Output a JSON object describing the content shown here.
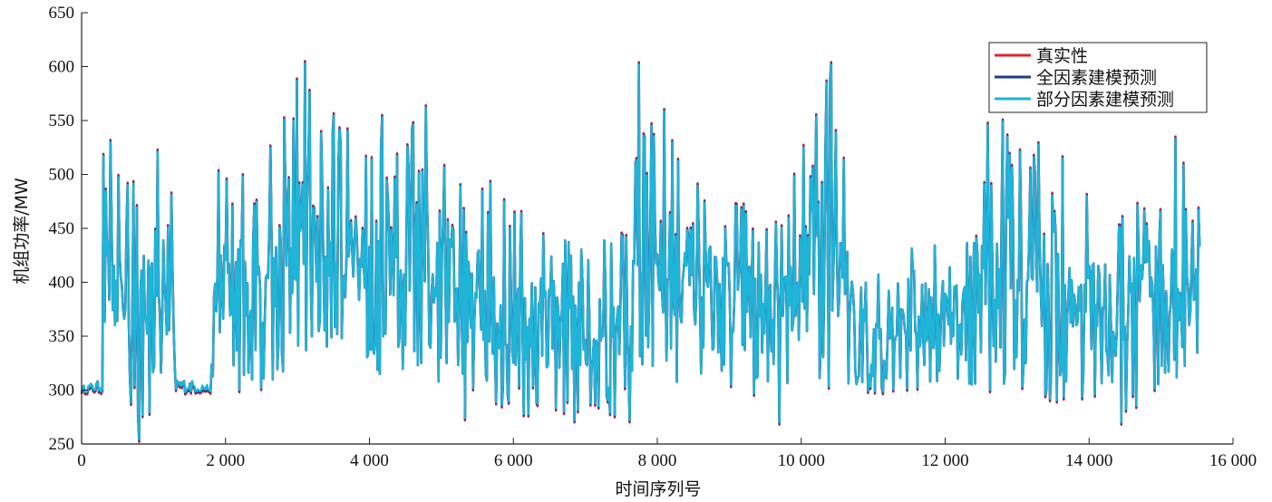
{
  "chart_data": {
    "type": "line",
    "title": "",
    "xlabel": "时间序列号",
    "ylabel": "机组功率/MW",
    "xlim": [
      0,
      16000
    ],
    "ylim": [
      250,
      650
    ],
    "xticks": [
      0,
      2000,
      4000,
      6000,
      8000,
      10000,
      12000,
      14000,
      16000
    ],
    "xtick_labels": [
      "0",
      "2 000",
      "4 000",
      "6 000",
      "8 000",
      "10 000",
      "12 000",
      "14 000",
      "16 000"
    ],
    "yticks": [
      250,
      300,
      350,
      400,
      450,
      500,
      550,
      600,
      650
    ],
    "ytick_labels": [
      "250",
      "300",
      "350",
      "400",
      "450",
      "500",
      "550",
      "600",
      "650"
    ],
    "grid": false,
    "legend_position": "top-right",
    "x_end": 15550,
    "series": [
      {
        "name": "真实性",
        "color": "#e0262f"
      },
      {
        "name": "全因素建模预测",
        "color": "#1f3c88"
      },
      {
        "name": "部分因素建模预测",
        "color": "#1fb4d8"
      }
    ],
    "envelope": [
      {
        "x": 0,
        "low": 298,
        "high": 304
      },
      {
        "x": 300,
        "low": 298,
        "high": 310
      },
      {
        "x": 330,
        "low": 370,
        "high": 520
      },
      {
        "x": 800,
        "low": 254,
        "high": 530
      },
      {
        "x": 1250,
        "low": 330,
        "high": 520
      },
      {
        "x": 1300,
        "low": 298,
        "high": 312
      },
      {
        "x": 1800,
        "low": 298,
        "high": 305
      },
      {
        "x": 1850,
        "low": 300,
        "high": 503
      },
      {
        "x": 2500,
        "low": 300,
        "high": 520
      },
      {
        "x": 3100,
        "low": 330,
        "high": 603
      },
      {
        "x": 4000,
        "low": 320,
        "high": 530
      },
      {
        "x": 4200,
        "low": 310,
        "high": 553
      },
      {
        "x": 4800,
        "low": 300,
        "high": 562
      },
      {
        "x": 5900,
        "low": 272,
        "high": 475
      },
      {
        "x": 7600,
        "low": 272,
        "high": 445
      },
      {
        "x": 7750,
        "low": 300,
        "high": 602
      },
      {
        "x": 8800,
        "low": 310,
        "high": 480
      },
      {
        "x": 9700,
        "low": 271,
        "high": 462
      },
      {
        "x": 10400,
        "low": 300,
        "high": 602
      },
      {
        "x": 10900,
        "low": 296,
        "high": 400
      },
      {
        "x": 12000,
        "low": 300,
        "high": 462
      },
      {
        "x": 12800,
        "low": 300,
        "high": 549
      },
      {
        "x": 14500,
        "low": 270,
        "high": 487
      },
      {
        "x": 15200,
        "low": 300,
        "high": 533
      },
      {
        "x": 15550,
        "low": 310,
        "high": 463
      }
    ],
    "peaks": [
      {
        "x": 300,
        "y": 517
      },
      {
        "x": 400,
        "y": 530
      },
      {
        "x": 800,
        "y": 254
      },
      {
        "x": 1050,
        "y": 521
      },
      {
        "x": 1900,
        "y": 502
      },
      {
        "x": 2820,
        "y": 551
      },
      {
        "x": 2990,
        "y": 587
      },
      {
        "x": 3100,
        "y": 603
      },
      {
        "x": 4180,
        "y": 553
      },
      {
        "x": 4780,
        "y": 562
      },
      {
        "x": 5330,
        "y": 274
      },
      {
        "x": 5880,
        "y": 475
      },
      {
        "x": 6850,
        "y": 272
      },
      {
        "x": 7620,
        "y": 272
      },
      {
        "x": 7750,
        "y": 602
      },
      {
        "x": 7830,
        "y": 533
      },
      {
        "x": 9700,
        "y": 270
      },
      {
        "x": 10420,
        "y": 602
      },
      {
        "x": 12600,
        "y": 546
      },
      {
        "x": 12800,
        "y": 549
      },
      {
        "x": 14450,
        "y": 270
      },
      {
        "x": 15200,
        "y": 533
      }
    ]
  }
}
